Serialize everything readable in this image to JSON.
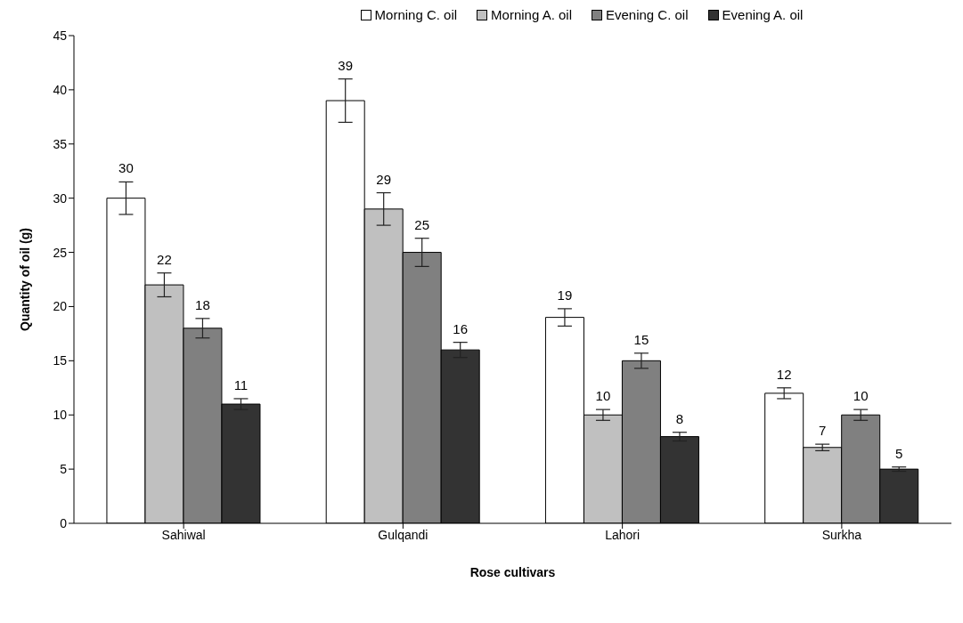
{
  "chart_data": {
    "type": "bar",
    "xlabel": "Rose cultivars",
    "ylabel": "Quantity of oil (g)",
    "categories": [
      "Sahiwal",
      "Gulqandi",
      "Lahori",
      "Surkha"
    ],
    "series": [
      {
        "name": "Morning C. oil",
        "color": "#ffffff",
        "values": [
          30,
          39,
          19,
          12
        ],
        "errors": [
          1.5,
          2.0,
          0.8,
          0.5
        ]
      },
      {
        "name": "Morning A. oil",
        "color": "#c0c0c0",
        "values": [
          22,
          29,
          10,
          7
        ],
        "errors": [
          1.1,
          1.5,
          0.5,
          0.3
        ]
      },
      {
        "name": "Evening C. oil",
        "color": "#808080",
        "values": [
          18,
          25,
          15,
          10
        ],
        "errors": [
          0.9,
          1.3,
          0.7,
          0.5
        ]
      },
      {
        "name": "Evening A. oil",
        "color": "#333333",
        "values": [
          11,
          16,
          8,
          5
        ],
        "errors": [
          0.5,
          0.7,
          0.4,
          0.2
        ]
      }
    ],
    "ylim": [
      0,
      45
    ],
    "yticks": [
      0,
      5,
      10,
      15,
      20,
      25,
      30,
      35,
      40,
      45
    ],
    "grid": false,
    "legend": "top",
    "data_labels": true
  }
}
